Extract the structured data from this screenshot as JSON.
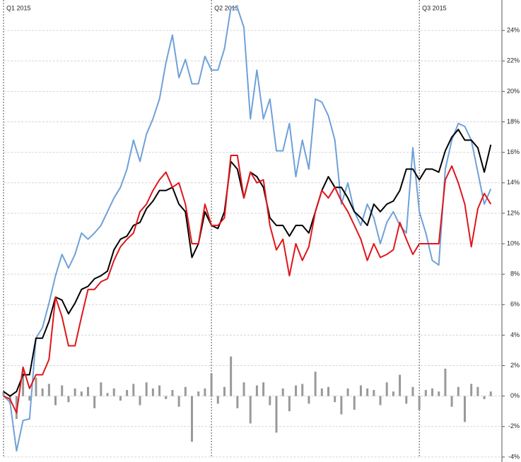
{
  "chart_data": {
    "type": "line",
    "categories": [
      "Q1 2015",
      null,
      null,
      null,
      null,
      null,
      null,
      null,
      null,
      null,
      null,
      null,
      null,
      null,
      null,
      null,
      null,
      null,
      null,
      null,
      null,
      null,
      null,
      null,
      null,
      null,
      null,
      null,
      null,
      null,
      null,
      null,
      "Q2 2015",
      null,
      null,
      null,
      null,
      null,
      null,
      null,
      null,
      null,
      null,
      null,
      null,
      null,
      null,
      null,
      null,
      null,
      null,
      null,
      null,
      null,
      null,
      null,
      null,
      null,
      null,
      null,
      null,
      null,
      null,
      null,
      "Q3 2015",
      null,
      null,
      null,
      null,
      null,
      null,
      null,
      null,
      null,
      null,
      null
    ],
    "series": [
      {
        "type": "bar",
        "color": "#999999",
        "values": [
          0.3,
          -0.5,
          -1.5,
          1.8,
          -0.3,
          1.2,
          0.5,
          0.8,
          -0.6,
          0.7,
          -0.4,
          0.5,
          0.3,
          0.6,
          -0.8,
          0.9,
          0.2,
          0.5,
          -0.3,
          0.4,
          0.8,
          -0.6,
          0.9,
          0.5,
          0.7,
          -0.2,
          0.4,
          -0.7,
          0.6,
          -3.0,
          0.3,
          0.5,
          1.5,
          -0.5,
          0.6,
          2.6,
          -0.8,
          0.9,
          -1.8,
          0.7,
          0.9,
          -0.6,
          -2.4,
          0.5,
          -1.0,
          0.7,
          0.8,
          -0.5,
          1.6,
          0.5,
          0.6,
          -0.4,
          -1.2,
          0.5,
          -0.9,
          0.7,
          0.5,
          0.4,
          -0.6,
          0.9,
          0.3,
          1.4,
          -0.5,
          0.6,
          -0.9,
          0.4,
          0.5,
          0.3,
          1.8,
          -0.7,
          0.6,
          -1.7,
          0.8,
          0.6,
          -0.2,
          0.3
        ]
      },
      {
        "type": "line",
        "color": "#6fa1d8",
        "values": [
          0,
          -0.4,
          -3.6,
          -1.6,
          -1.5,
          3.8,
          4.5,
          6.1,
          7.9,
          9.3,
          8.4,
          9.3,
          10.7,
          10.3,
          10.7,
          11.2,
          12.1,
          13.0,
          13.7,
          14.9,
          16.8,
          15.4,
          17.2,
          18.2,
          19.5,
          21.9,
          23.7,
          20.9,
          22.1,
          20.5,
          20.5,
          22.3,
          21.4,
          21.4,
          22.8,
          25.5,
          25.5,
          24.2,
          18.2,
          21.4,
          18.2,
          19.5,
          16.1,
          16.1,
          17.9,
          14.4,
          16.8,
          14.9,
          19.5,
          19.3,
          18.4,
          16.8,
          12.6,
          14.0,
          12.1,
          11.2,
          12.6,
          11.7,
          10.0,
          11.4,
          12.1,
          11.2,
          10.7,
          16.3,
          12.1,
          10.7,
          8.9,
          8.6,
          14.9,
          16.8,
          17.9,
          17.7,
          16.8,
          14.7,
          12.6,
          13.6
        ]
      },
      {
        "type": "line",
        "color": "#000000",
        "values": [
          0.3,
          0,
          0.3,
          1.4,
          1.4,
          3.8,
          3.8,
          4.9,
          6.5,
          6.3,
          5.4,
          6.1,
          7.0,
          7.2,
          7.7,
          7.9,
          8.2,
          9.6,
          10.3,
          10.5,
          11.2,
          11.4,
          12.3,
          12.8,
          13.5,
          13.5,
          13.7,
          12.6,
          12.1,
          9.1,
          10.0,
          12.1,
          11.2,
          11.0,
          12.1,
          15.4,
          14.9,
          13.0,
          14.7,
          14.4,
          13.7,
          11.7,
          11.2,
          11.2,
          10.5,
          11.2,
          11.2,
          10.7,
          12.1,
          13.5,
          14.4,
          13.7,
          13.7,
          13.0,
          12.1,
          11.7,
          11.2,
          12.6,
          12.1,
          12.6,
          12.8,
          13.5,
          14.9,
          14.9,
          14.2,
          14.9,
          14.9,
          14.7,
          16.1,
          17.0,
          17.5,
          16.8,
          16.8,
          16.3,
          14.7,
          16.5
        ]
      },
      {
        "type": "line",
        "color": "#e0161b",
        "values": [
          0,
          -0.2,
          -1.1,
          1.9,
          0.5,
          1.4,
          1.4,
          2.4,
          6.5,
          5.2,
          3.3,
          3.3,
          5.2,
          7.0,
          7.0,
          7.5,
          7.7,
          8.9,
          9.8,
          10.3,
          10.7,
          12.1,
          12.6,
          13.5,
          14.2,
          14.7,
          13.7,
          14.0,
          12.6,
          10.0,
          10.0,
          12.6,
          11.2,
          11.2,
          11.7,
          15.8,
          15.8,
          13.0,
          14.7,
          14.0,
          14.2,
          11.2,
          9.6,
          10.3,
          7.9,
          10.0,
          8.9,
          9.8,
          12.1,
          13.5,
          13.0,
          13.7,
          12.8,
          12.1,
          11.2,
          10.3,
          8.9,
          10.0,
          9.1,
          9.3,
          9.6,
          11.4,
          10.3,
          9.3,
          10.0,
          10.0,
          10.0,
          10.0,
          14.2,
          15.1,
          14.0,
          12.6,
          9.8,
          12.3,
          13.3,
          12.6
        ]
      }
    ],
    "ylim": [
      -4.05,
      26
    ],
    "yticks": [
      {
        "value": -4,
        "label": "-4%"
      },
      {
        "value": -2,
        "label": "-2%"
      },
      {
        "value": 0,
        "label": "0%"
      },
      {
        "value": 2,
        "label": "2%"
      },
      {
        "value": 4,
        "label": "4%"
      },
      {
        "value": 6,
        "label": "6%"
      },
      {
        "value": 8,
        "label": "8%"
      },
      {
        "value": 10,
        "label": "10%"
      },
      {
        "value": 12,
        "label": "12%"
      },
      {
        "value": 14,
        "label": "14%"
      },
      {
        "value": 16,
        "label": "16%"
      },
      {
        "value": 18,
        "label": "18%"
      },
      {
        "value": 20,
        "label": "20%"
      },
      {
        "value": 22,
        "label": "22%"
      },
      {
        "value": 24,
        "label": "24%"
      }
    ],
    "grid": true
  }
}
